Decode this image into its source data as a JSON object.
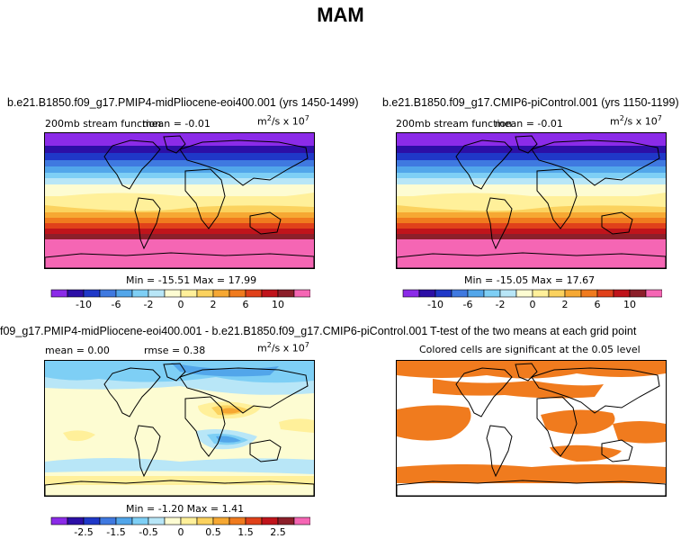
{
  "figure": {
    "title": "MAM"
  },
  "panels": {
    "p1": {
      "title": "b.e21.B1850.f09_g17.PMIP4-midPliocene-eoi400.001 (yrs 1450-1499)",
      "left_label": "200mb stream function",
      "mean_label": "mean =   -0.01",
      "units": "m",
      "units_rest": "/s x 10",
      "units_exp": "7",
      "units_sq": "2",
      "minmax": "Min = -15.51  Max =  17.99"
    },
    "p2": {
      "title": "b.e21.B1850.f09_g17.CMIP6-piControl.001 (yrs 1150-1199)",
      "left_label": "200mb stream function",
      "mean_label": "mean =   -0.01",
      "units": "m",
      "units_rest": "/s x 10",
      "units_exp": "7",
      "units_sq": "2",
      "minmax": "Min = -15.05  Max =  17.67"
    },
    "p3": {
      "title": "f09_g17.PMIP4-midPliocene-eoi400.001 - b.e21.B1850.f09_g17.CMIP6-piControl.001",
      "mean_label": "mean =    0.00",
      "rmse_label": "rmse =    0.38",
      "units": "m",
      "units_rest": "/s x 10",
      "units_exp": "7",
      "units_sq": "2",
      "minmax": "Min = -1.20  Max =  1.41"
    },
    "p4": {
      "title": "T-test of the two means at each grid point",
      "subtitle": "Colored cells are significant at the 0.05 level"
    }
  },
  "colorbars": {
    "full": {
      "colors": [
        "#8b2be8",
        "#2c0fa6",
        "#1f38c8",
        "#3f79e0",
        "#52a6ea",
        "#7ecff5",
        "#b8e6f7",
        "#fdfcd2",
        "#fff09a",
        "#fbd25e",
        "#f6a833",
        "#f07b1e",
        "#e0411a",
        "#c0141b",
        "#8c1f2a",
        "#f566b4"
      ],
      "tick_labels": [
        "-10",
        "-6",
        "-2",
        "0",
        "2",
        "6",
        "10"
      ]
    },
    "diff": {
      "colors": [
        "#8b2be8",
        "#2c0fa6",
        "#1f38c8",
        "#3f79e0",
        "#52a6ea",
        "#7ecff5",
        "#b8e6f7",
        "#fdfcd2",
        "#fff09a",
        "#fbd25e",
        "#f6a833",
        "#f07b1e",
        "#e0411a",
        "#c0141b",
        "#8c1f2a",
        "#f566b4"
      ],
      "tick_labels": [
        "-2.5",
        "-1.5",
        "-0.5",
        "0",
        "0.5",
        "1.5",
        "2.5"
      ]
    }
  },
  "chart_data": [
    {
      "type": "heatmap",
      "title": "b.e21.B1850.f09_g17.PMIP4-midPliocene-eoi400.001 (yrs 1450-1499)",
      "variable": "200mb stream function",
      "units": "m2/s x 10^7",
      "mean": -0.01,
      "min": -15.51,
      "max": 17.99
    },
    {
      "type": "heatmap",
      "title": "b.e21.B1850.f09_g17.CMIP6-piControl.001 (yrs 1150-1199)",
      "variable": "200mb stream function",
      "units": "m2/s x 10^7",
      "mean": -0.01,
      "min": -15.05,
      "max": 17.67
    },
    {
      "type": "heatmap",
      "title": "f09_g17.PMIP4-midPliocene-eoi400.001 - b.e21.B1850.f09_g17.CMIP6-piControl.001",
      "units": "m2/s x 10^7",
      "mean": 0.0,
      "rmse": 0.38,
      "min": -1.2,
      "max": 1.41
    },
    {
      "type": "heatmap",
      "title": "T-test of the two means at each grid point",
      "note": "Colored cells are significant at the 0.05 level",
      "significance_level": 0.05
    }
  ]
}
